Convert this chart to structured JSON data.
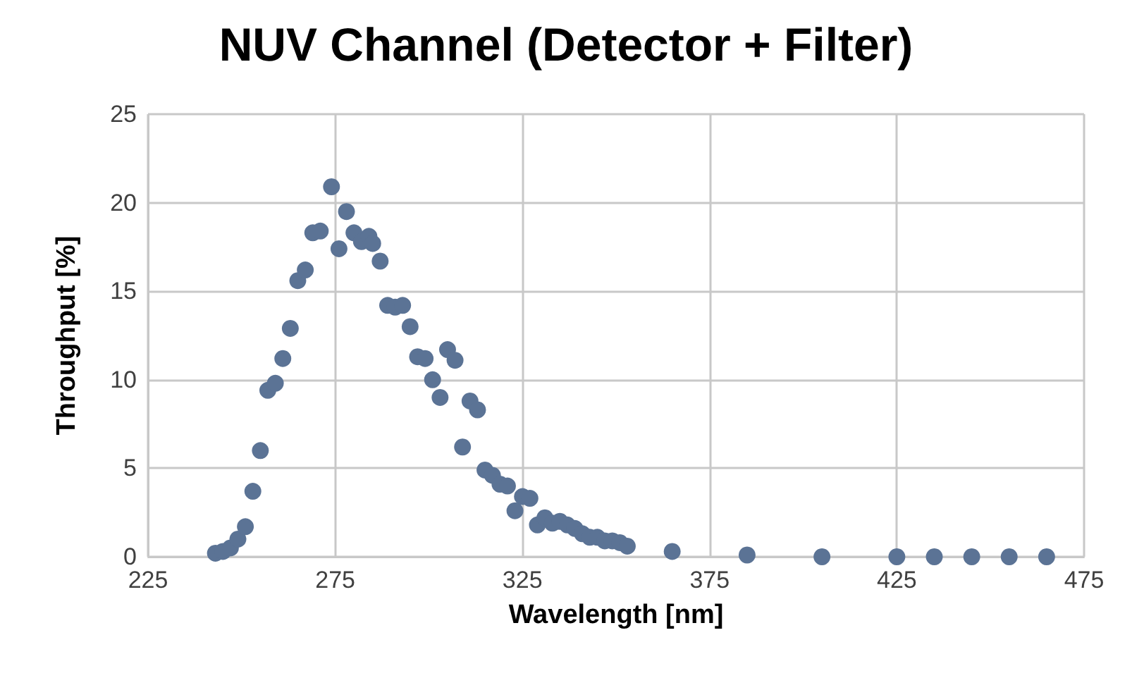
{
  "chart_data": {
    "type": "scatter",
    "title": "NUV Channel (Detector + Filter)",
    "xlabel": "Wavelength [nm]",
    "ylabel": "Throughput [%]",
    "x": [
      243,
      245,
      247,
      249,
      251,
      253,
      255,
      257,
      259,
      261,
      263,
      265,
      267,
      269,
      271,
      274,
      276,
      278,
      280,
      282,
      284,
      285,
      287,
      289,
      291,
      293,
      295,
      297,
      299,
      301,
      303,
      305,
      307,
      309,
      311,
      313,
      315,
      317,
      319,
      321,
      323,
      325,
      327,
      329,
      331,
      333,
      335,
      337,
      339,
      341,
      343,
      345,
      347,
      349,
      351,
      353,
      365,
      385,
      405,
      425,
      435,
      445,
      455,
      465
    ],
    "series": [
      {
        "color": "#5b7395",
        "values": [
          0.2,
          0.3,
          0.5,
          1.0,
          1.7,
          3.7,
          6.0,
          9.4,
          9.8,
          11.2,
          12.9,
          15.6,
          16.2,
          18.3,
          18.4,
          20.9,
          17.4,
          19.5,
          18.3,
          17.8,
          18.1,
          17.7,
          16.7,
          14.2,
          14.1,
          14.2,
          13.0,
          11.3,
          11.2,
          10.0,
          9.0,
          11.7,
          11.1,
          6.2,
          8.8,
          8.3,
          4.9,
          4.6,
          4.1,
          4.0,
          2.6,
          3.4,
          3.3,
          1.8,
          2.2,
          1.9,
          2.0,
          1.8,
          1.6,
          1.3,
          1.1,
          1.1,
          0.9,
          0.9,
          0.8,
          0.6,
          0.3,
          0.1,
          0.0,
          0.0,
          0.0,
          0.0,
          0.0,
          0.0
        ]
      }
    ],
    "xlim": [
      225,
      475
    ],
    "xticks": [
      225,
      275,
      325,
      375,
      425,
      475
    ],
    "ylim": [
      0,
      25
    ],
    "yticks": [
      0,
      5,
      10,
      15,
      20,
      25
    ],
    "grid": true,
    "marker": "circle"
  }
}
